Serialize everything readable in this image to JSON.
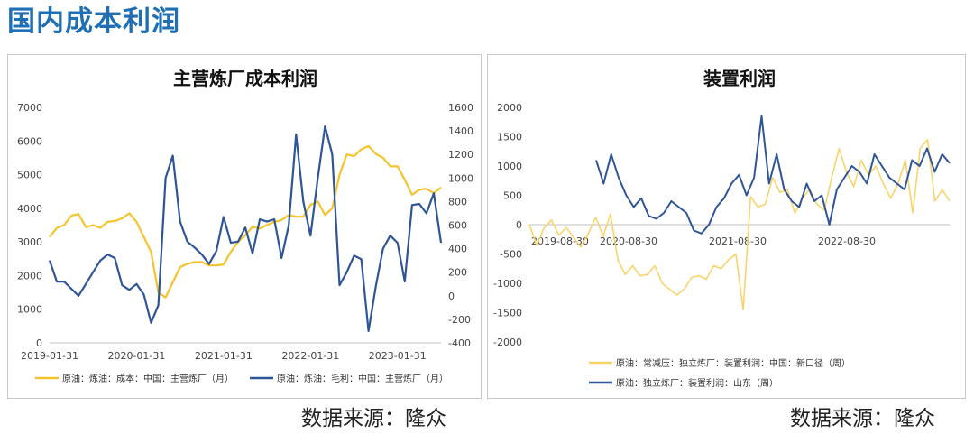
{
  "page": {
    "title": "国内成本利润"
  },
  "sources": {
    "left": "数据来源：隆众",
    "right": "数据来源：隆众"
  },
  "colors": {
    "yellow": "#f5c32c",
    "yellow_light": "#f7d46b",
    "blue": "#2f5597",
    "grid": "#d9d9d9",
    "axis": "#bfbfbf"
  },
  "chart_data": [
    {
      "type": "line",
      "title": "主营炼厂成本利润",
      "x_tick_labels": [
        "2019-01-31",
        "2020-01-31",
        "2021-01-31",
        "2022-01-31",
        "2023-01-31"
      ],
      "x_tick_index": [
        0,
        12,
        24,
        36,
        48
      ],
      "ylim": [
        0,
        7000
      ],
      "yticks": [
        0,
        1000,
        2000,
        3000,
        4000,
        5000,
        6000,
        7000
      ],
      "y2lim": [
        -400,
        1600
      ],
      "y2ticks": [
        -400,
        -200,
        0,
        200,
        400,
        600,
        800,
        1000,
        1200,
        1400,
        1600
      ],
      "legend_position": "bottom",
      "series": [
        {
          "name": "原油：炼油：成本：中国：主营炼厂（月）",
          "axis": "left",
          "color": "#f5c32c",
          "values": [
            3150,
            3420,
            3500,
            3780,
            3830,
            3440,
            3500,
            3420,
            3600,
            3620,
            3700,
            3850,
            3600,
            3150,
            2700,
            1500,
            1350,
            1800,
            2250,
            2350,
            2400,
            2400,
            2300,
            2300,
            2330,
            2700,
            3000,
            3200,
            3450,
            3400,
            3500,
            3600,
            3650,
            3800,
            3750,
            3750,
            4100,
            4200,
            3800,
            4000,
            5000,
            5600,
            5550,
            5750,
            5850,
            5620,
            5500,
            5250,
            5250,
            4850,
            4400,
            4550,
            4580,
            4450,
            4620
          ]
        },
        {
          "name": "原油：炼油：毛利：中国：主营炼厂（月）",
          "axis": "right",
          "color": "#2f5597",
          "values": [
            300,
            120,
            120,
            60,
            0,
            100,
            200,
            300,
            350,
            320,
            90,
            50,
            100,
            10,
            -230,
            -80,
            1000,
            1190,
            630,
            460,
            410,
            350,
            270,
            380,
            670,
            450,
            460,
            580,
            360,
            650,
            630,
            650,
            320,
            600,
            1370,
            800,
            510,
            1000,
            1440,
            1200,
            90,
            200,
            340,
            310,
            -300,
            80,
            400,
            510,
            450,
            120,
            770,
            780,
            700,
            870,
            450
          ]
        }
      ]
    },
    {
      "type": "line",
      "title": "装置利润",
      "x_tick_labels": [
        "2019-08-30",
        "2020-08-30",
        "2021-08-30",
        "2022-08-30"
      ],
      "x_tick_index": [
        0,
        12,
        24,
        36
      ],
      "ylim": [
        -2000,
        2000
      ],
      "yticks": [
        -2000,
        -1500,
        -1000,
        -500,
        0,
        500,
        1000,
        1500,
        2000
      ],
      "legend_position": "bottom",
      "series": [
        {
          "name": "原油：常减压：独立炼厂：装置利润：中国：新口径（周）",
          "color": "#f7d46b",
          "values": [
            0,
            -350,
            -50,
            80,
            -180,
            -50,
            -220,
            -380,
            -150,
            130,
            -200,
            180,
            -600,
            -850,
            -700,
            -870,
            -850,
            -700,
            -1000,
            -1100,
            -1200,
            -1100,
            -900,
            -870,
            -930,
            -700,
            -750,
            -600,
            -500,
            -1450,
            480,
            300,
            350,
            800,
            550,
            600,
            200,
            450,
            600,
            350,
            250,
            800,
            1300,
            900,
            650,
            1100,
            850,
            1000,
            700,
            450,
            700,
            1100,
            200,
            1300,
            1450,
            400,
            600,
            400
          ]
        },
        {
          "name": "原油：独立炼厂：装置利润：山东（周）",
          "color": "#2f5597",
          "values": [
            1100,
            700,
            1200,
            800,
            500,
            300,
            450,
            150,
            100,
            200,
            400,
            300,
            200,
            -100,
            -150,
            0,
            300,
            450,
            700,
            850,
            500,
            800,
            1850,
            700,
            1200,
            600,
            400,
            300,
            700,
            400,
            500,
            0,
            600,
            800,
            1000,
            900,
            700,
            1200,
            1000,
            800,
            700,
            600,
            1100,
            1000,
            1300,
            900,
            1200,
            1050
          ]
        }
      ]
    }
  ]
}
